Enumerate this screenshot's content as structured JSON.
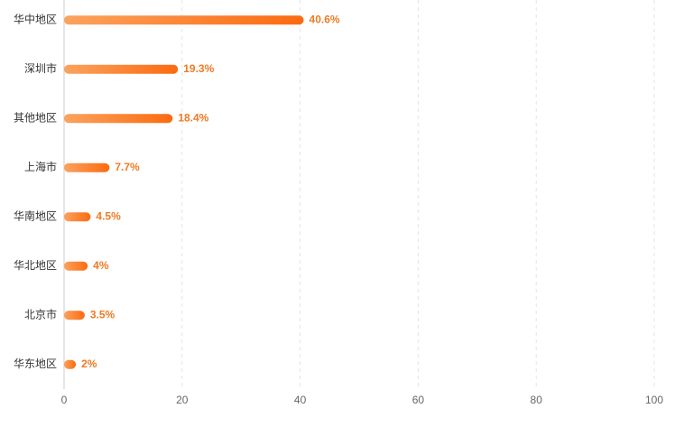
{
  "chart_data": {
    "type": "bar",
    "orientation": "horizontal",
    "categories": [
      "华中地区",
      "深圳市",
      "其他地区",
      "上海市",
      "华南地区",
      "华北地区",
      "北京市",
      "华东地区"
    ],
    "values": [
      40.6,
      19.3,
      18.4,
      7.7,
      4.5,
      4,
      3.5,
      2
    ],
    "value_labels": [
      "40.6%",
      "19.3%",
      "18.4%",
      "7.7%",
      "4.5%",
      "4%",
      "3.5%",
      "2%"
    ],
    "color": "#fb6a10",
    "xlim": [
      0,
      100
    ],
    "xticks": [
      0,
      20,
      40,
      60,
      80,
      100
    ],
    "grid": true
  }
}
